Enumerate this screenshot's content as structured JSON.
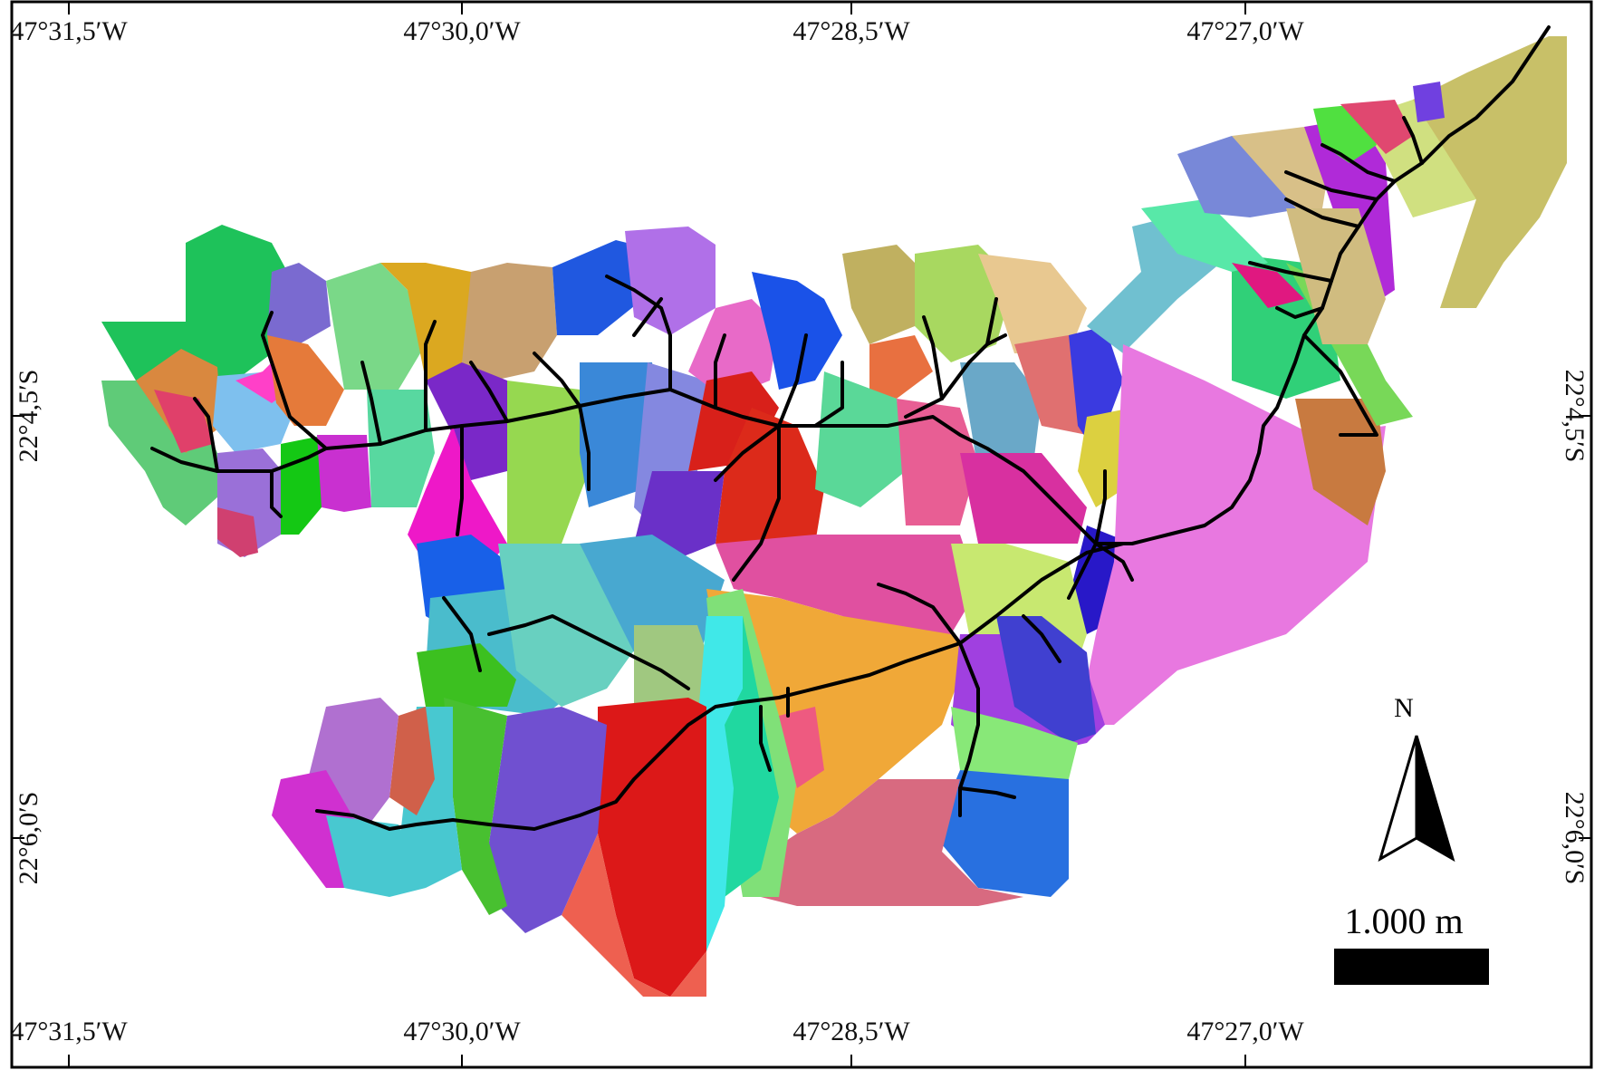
{
  "map": {
    "longitude_labels": [
      "47°31,5′W",
      "47°30,0′W",
      "47°28,5′W",
      "47°27,0′W"
    ],
    "latitude_labels": [
      "22°4,5′S",
      "22°6,0′S"
    ],
    "north_arrow": {
      "label": "N",
      "icon": "north-arrow-icon"
    },
    "scale_bar": {
      "label": "1.000 m"
    },
    "colors": {
      "frame": "#000000",
      "drainage": "#000000",
      "background": "#ffffff"
    },
    "layers": [
      "watershed-subbasin-polygons",
      "drainage-network"
    ]
  }
}
